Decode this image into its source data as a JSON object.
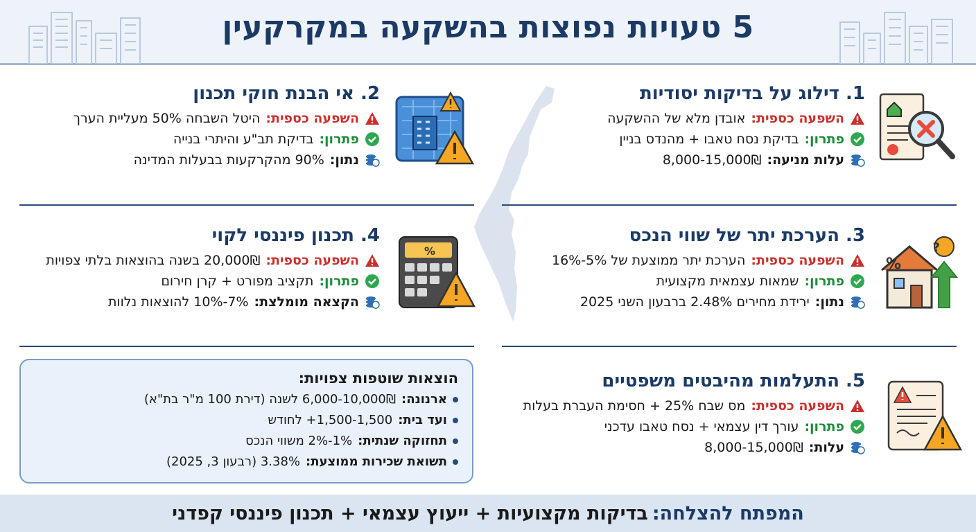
{
  "header": {
    "title": "5 טעויות נפוצות בהשקעה במקרקעין"
  },
  "sections": [
    {
      "title": "1. דילוג על בדיקות יסודיות",
      "rows": [
        {
          "label": "השפעה כספית:",
          "text": "אובדן מלא של ההשקעה",
          "kind": "warning"
        },
        {
          "label": "פתרון:",
          "text": "בדיקת נסח טאבו + מהנדס בניין",
          "kind": "solution"
        },
        {
          "label": "עלות מניעה:",
          "text": "8,000-15,000₪",
          "kind": "money"
        }
      ]
    },
    {
      "title": "2. אי הבנת חוקי תכנון",
      "rows": [
        {
          "label": "השפעה כספית:",
          "text": "היטל השבחה 50% מעליית הערך",
          "kind": "warning"
        },
        {
          "label": "פתרון:",
          "text": "בדיקת תב\"ע והיתרי בנייה",
          "kind": "solution"
        },
        {
          "label": "נתון:",
          "text": "90% מהקרקעות בבעלות המדינה",
          "kind": "money"
        }
      ]
    },
    {
      "title": "3. הערכת יתר של שווי הנכס",
      "rows": [
        {
          "label": "השפעה כספית:",
          "text": "הערכת יתר ממוצעת של 5%-16%",
          "kind": "warning"
        },
        {
          "label": "פתרון:",
          "text": "שמאות עצמאית מקצועית",
          "kind": "solution"
        },
        {
          "label": "נתון:",
          "text": "ירידת מחירים 2.48% ברבעון השני 2025",
          "kind": "money"
        }
      ]
    },
    {
      "title": "4. תכנון פיננסי לקוי",
      "rows": [
        {
          "label": "השפעה כספית:",
          "text": "20,000₪ בשנה בהוצאות בלתי צפויות",
          "kind": "warning"
        },
        {
          "label": "פתרון:",
          "text": "תקציב מפורט + קרן חירום",
          "kind": "solution"
        },
        {
          "label": "הקצאה מומלצת:",
          "text": "7%-10% להוצאות נלוות",
          "kind": "money"
        }
      ]
    },
    {
      "title": "5. התעלמות מהיבטים משפטיים",
      "rows": [
        {
          "label": "השפעה כספית:",
          "text": "מס שבח 25% + חסימת העברת בעלות",
          "kind": "warning"
        },
        {
          "label": "פתרון:",
          "text": "עורך דין עצמאי + נסח טאבו עדכני",
          "kind": "solution"
        },
        {
          "label": "עלות:",
          "text": "8,000-15,000₪",
          "kind": "money"
        }
      ]
    }
  ],
  "expenses": {
    "title": "הוצאות שוטפות צפויות:",
    "items": [
      {
        "label": "ארנונה:",
        "text": "6,000-10,000₪ לשנה (דירת 100 מ\"ר בת\"א)"
      },
      {
        "label": "ועד בית:",
        "text": "1,500-1,500+ לחודש"
      },
      {
        "label": "תחזוקה שנתית:",
        "text": "1%-2% משווי הנכס"
      },
      {
        "label": "תשואת שכירות ממוצעת:",
        "text": "3.38% (רבעון 3, 2025)"
      }
    ]
  },
  "footer": {
    "key": "המפתח להצלחה:",
    "value": "בדיקות מקצועיות + ייעוץ עצמאי + תכנון פיננסי קפדני"
  },
  "colors": {
    "navy": "#1b3a66",
    "warning_red": "#c9302c",
    "solution_green": "#1e8a3c",
    "accent_blue": "#2f6fb4"
  },
  "icons": {
    "warning": "warning-triangle-icon",
    "solution": "check-circle-icon",
    "money": "coins-icon"
  }
}
